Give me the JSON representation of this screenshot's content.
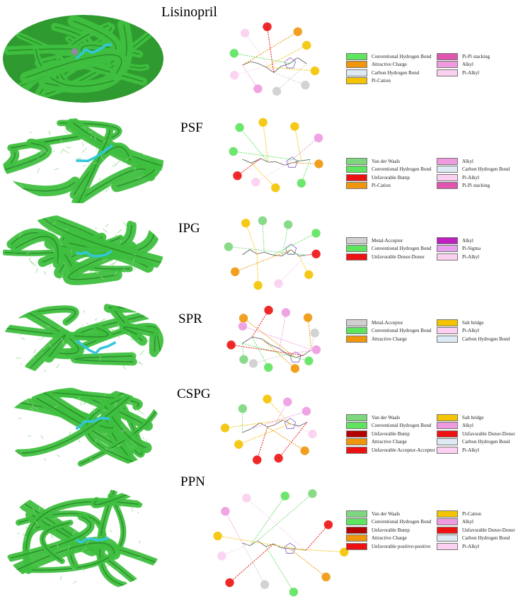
{
  "colors": {
    "ribbon": "#3fbf3f",
    "ribbon_dark": "#2a8f2a",
    "ligand": "#33c6da",
    "vdw": "#7dd87d",
    "hbond": "#5ee45e",
    "unfav_bump": "#b30000",
    "attractive": "#f0960a",
    "unfav_red": "#ee1111",
    "carbon_h": "#dde9f3",
    "pi_cation": "#f5c400",
    "pi_pi": "#e055b0",
    "alkyl": "#f09be0",
    "pi_alkyl": "#fbd0f0",
    "metal": "#cfcfcf",
    "alkyl_purple": "#c020c0",
    "pi_sigma": "#e7a0ee"
  },
  "panels": [
    {
      "title": "Lisinopril",
      "legend": [
        {
          "label": "Conventional Hydrogen Bond",
          "color": "#5ee45e",
          "col": 0
        },
        {
          "label": "Attractive Charge",
          "color": "#f0960a",
          "col": 0
        },
        {
          "label": "Carbon Hydrogen Bond",
          "color": "#dde9f3",
          "col": 0
        },
        {
          "label": "Pi-Cation",
          "color": "#f5c400",
          "col": 0
        },
        {
          "label": "Pi-Pi stacking",
          "color": "#e055b0",
          "col": 1
        },
        {
          "label": "Alkyl",
          "color": "#f09be0",
          "col": 1
        },
        {
          "label": "Pi-Alkyl",
          "color": "#fbd0f0",
          "col": 1
        }
      ]
    },
    {
      "title": "PSF",
      "legend": [
        {
          "label": "Van der Waals",
          "color": "#7dd87d",
          "col": 0
        },
        {
          "label": "Conventional Hydrogen Bond",
          "color": "#5ee45e",
          "col": 0
        },
        {
          "label": "Unfavorable Bump",
          "color": "#ee1111",
          "col": 0
        },
        {
          "label": "Pi-Cation",
          "color": "#f0960a",
          "col": 0
        },
        {
          "label": "Alkyl",
          "color": "#f09be0",
          "col": 1
        },
        {
          "label": "Carbon Hydrogen Bond",
          "color": "#dde9f3",
          "col": 1
        },
        {
          "label": "Pi-Alkyl",
          "color": "#fbd0f0",
          "col": 1
        },
        {
          "label": "Pi-Pi stacking",
          "color": "#e055b0",
          "col": 1
        }
      ]
    },
    {
      "title": "IPG",
      "legend": [
        {
          "label": "Metal-Acceptor",
          "color": "#cfcfcf",
          "col": 0
        },
        {
          "label": "Conventional Hydrogen Bond",
          "color": "#5ee45e",
          "col": 0
        },
        {
          "label": "Unfavorable Donor-Donor",
          "color": "#ee1111",
          "col": 0
        },
        {
          "label": "Alkyl",
          "color": "#c020c0",
          "col": 1
        },
        {
          "label": "Pi-Sigma",
          "color": "#e7a0ee",
          "col": 1
        },
        {
          "label": "Pi-Alkyl",
          "color": "#fbd0f0",
          "col": 1
        }
      ]
    },
    {
      "title": "SPR",
      "legend": [
        {
          "label": "Metal-Acceptor",
          "color": "#cfcfcf",
          "col": 0
        },
        {
          "label": "Conventional Hydrogen Bond",
          "color": "#5ee45e",
          "col": 0
        },
        {
          "label": "Attractive Charge",
          "color": "#f0960a",
          "col": 0
        },
        {
          "label": "Salt bridge",
          "color": "#f5c400",
          "col": 1
        },
        {
          "label": "Pi-Alkyl",
          "color": "#fbd0f0",
          "col": 1
        },
        {
          "label": "Carbon Hydrogen Bond",
          "color": "#dde9f3",
          "col": 1
        }
      ]
    },
    {
      "title": "CSPG",
      "legend": [
        {
          "label": "Van der Waals",
          "color": "#7dd87d",
          "col": 0
        },
        {
          "label": "Conventional Hydrogen Bond",
          "color": "#5ee45e",
          "col": 0
        },
        {
          "label": "Unfavorable Bump",
          "color": "#b30000",
          "col": 0
        },
        {
          "label": "Attractive Charge",
          "color": "#f0960a",
          "col": 0
        },
        {
          "label": "Unfavorable Acceptor-Acceptor",
          "color": "#ee1111",
          "col": 0
        },
        {
          "label": "Salt bridge",
          "color": "#f5c400",
          "col": 1
        },
        {
          "label": "Alkyl",
          "color": "#f09be0",
          "col": 1
        },
        {
          "label": "Unfavorable Donor-Donor",
          "color": "#ee1111",
          "col": 1
        },
        {
          "label": "Carbon Hydrogen Bond",
          "color": "#dde9f3",
          "col": 1
        },
        {
          "label": "Pi-Alkyl",
          "color": "#fbd0f0",
          "col": 1
        }
      ]
    },
    {
      "title": "PPN",
      "legend": [
        {
          "label": "Van der Waals",
          "color": "#7dd87d",
          "col": 0
        },
        {
          "label": "Conventional Hydrogen Bond",
          "color": "#5ee45e",
          "col": 0
        },
        {
          "label": "Unfavorable Bump",
          "color": "#b30000",
          "col": 0
        },
        {
          "label": "Attractive Charge",
          "color": "#f0960a",
          "col": 0
        },
        {
          "label": "Unfavorable positive-positive",
          "color": "#ee1111",
          "col": 0
        },
        {
          "label": "Pi-Cation",
          "color": "#f5c400",
          "col": 1
        },
        {
          "label": "Alkyl",
          "color": "#f09be0",
          "col": 1
        },
        {
          "label": "Unfavorable Donor-Donor",
          "color": "#ee1111",
          "col": 1
        },
        {
          "label": "Carbon Hydrogen Bond",
          "color": "#dde9f3",
          "col": 1
        },
        {
          "label": "Pi-Alkyl",
          "color": "#fbd0f0",
          "col": 1
        }
      ]
    }
  ]
}
